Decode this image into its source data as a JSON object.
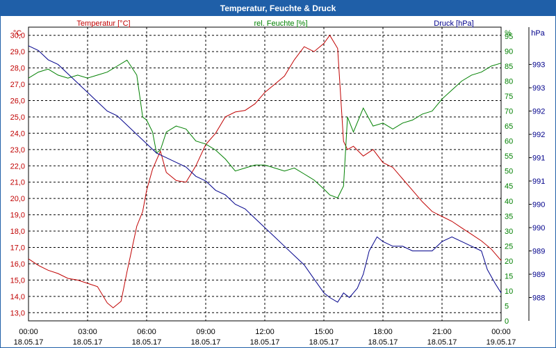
{
  "window_title": "Temperatur, Feuchte & Druck",
  "chart_data": {
    "type": "line",
    "title": "Temperatur, Feuchte & Druck",
    "colors": {
      "temperature": "#c00000",
      "humidity": "#008000",
      "pressure": "#00008b"
    },
    "x_axis": {
      "range_hours": [
        0,
        24
      ],
      "ticks": [
        {
          "time": "00:00",
          "date": "18.05.17"
        },
        {
          "time": "03:00",
          "date": "18.05.17"
        },
        {
          "time": "06:00",
          "date": "18.05.17"
        },
        {
          "time": "09:00",
          "date": "18.05.17"
        },
        {
          "time": "12:00",
          "date": "18.05.17"
        },
        {
          "time": "15:00",
          "date": "18.05.17"
        },
        {
          "time": "18:00",
          "date": "18.05.17"
        },
        {
          "time": "21:00",
          "date": "18.05.17"
        },
        {
          "time": "00:00",
          "date": "19.05.17"
        }
      ]
    },
    "y_axes": {
      "temperature": {
        "label": "Temperatur [°C]",
        "unit": "°C",
        "range": [
          12.5,
          30.5
        ],
        "ticks": [
          "13,0",
          "14,0",
          "15,0",
          "16,0",
          "17,0",
          "18,0",
          "19,0",
          "20,0",
          "21,0",
          "22,0",
          "23,0",
          "24,0",
          "25,0",
          "26,0",
          "27,0",
          "28,0",
          "29,0",
          "30,0"
        ]
      },
      "humidity": {
        "label": "rel. Feuchte [%]",
        "unit": "%",
        "range": [
          0,
          98
        ],
        "ticks": [
          "0",
          "5",
          "10",
          "15",
          "20",
          "25",
          "30",
          "35",
          "40",
          "45",
          "50",
          "55",
          "60",
          "65",
          "70",
          "75",
          "80",
          "85",
          "90",
          "95"
        ]
      },
      "pressure": {
        "label": "Druck [hPa]",
        "unit": "hPa",
        "range": [
          987.5,
          993.8
        ],
        "ticks": [
          "988",
          "989",
          "989",
          "990",
          "990",
          "991",
          "991",
          "992",
          "992",
          "993",
          "993"
        ]
      }
    },
    "series": [
      {
        "name": "Temperatur [°C]",
        "key": "temperature",
        "axis": "temperature",
        "x": [
          0,
          0.5,
          1,
          1.5,
          2,
          2.5,
          3,
          3.5,
          4,
          4.3,
          4.7,
          5,
          5.5,
          5.8,
          6,
          6.3,
          6.7,
          7,
          7.5,
          8,
          8.5,
          9,
          9.5,
          10,
          10.5,
          11,
          11.5,
          12,
          12.5,
          13,
          13.5,
          14,
          14.5,
          15,
          15.3,
          15.7,
          16,
          16.2,
          16.5,
          17,
          17.5,
          18,
          18.5,
          19,
          19.5,
          20,
          20.5,
          21,
          21.5,
          22,
          22.5,
          23,
          23.5,
          24
        ],
        "values": [
          16.3,
          15.9,
          15.6,
          15.4,
          15.1,
          15.0,
          14.8,
          14.6,
          13.6,
          13.3,
          13.7,
          15.5,
          18.3,
          19.2,
          20.5,
          21.8,
          22.9,
          21.6,
          21.1,
          21.0,
          22.0,
          23.3,
          24.0,
          25.0,
          25.3,
          25.4,
          25.8,
          26.5,
          27.0,
          27.5,
          28.5,
          29.3,
          29.0,
          29.5,
          30.0,
          29.2,
          23.5,
          23.0,
          23.2,
          22.6,
          23.0,
          22.2,
          21.9,
          21.2,
          20.5,
          19.8,
          19.2,
          18.9,
          18.6,
          18.2,
          17.8,
          17.4,
          16.9,
          16.2
        ]
      },
      {
        "name": "rel. Feuchte [%]",
        "key": "humidity",
        "axis": "humidity",
        "x": [
          0,
          0.5,
          1,
          1.5,
          2,
          2.5,
          3,
          3.5,
          4,
          4.5,
          5,
          5.5,
          5.8,
          6,
          6.3,
          6.5,
          6.7,
          7,
          7.5,
          8,
          8.5,
          9,
          9.5,
          10,
          10.5,
          11,
          11.5,
          12,
          12.5,
          13,
          13.5,
          14,
          14.5,
          15,
          15.3,
          15.7,
          16,
          16.2,
          16.5,
          17,
          17.5,
          18,
          18.5,
          19,
          19.5,
          20,
          20.5,
          21,
          21.5,
          22,
          22.5,
          23,
          23.5,
          24
        ],
        "values": [
          81,
          83,
          84,
          82,
          81,
          82,
          81,
          82,
          83,
          85,
          87,
          82,
          68,
          67,
          63,
          56,
          57,
          63,
          65,
          64,
          60,
          59,
          57,
          54,
          50,
          51,
          52,
          52,
          51,
          50,
          51,
          49,
          47,
          44,
          42,
          41,
          45,
          68,
          63,
          71,
          65,
          66,
          64,
          66,
          67,
          69,
          70,
          74,
          77,
          80,
          82,
          83,
          85,
          86
        ]
      },
      {
        "name": "Druck [hPa]",
        "key": "pressure",
        "axis": "pressure",
        "x": [
          0,
          0.5,
          1,
          1.5,
          2,
          2.5,
          3,
          3.5,
          4,
          4.5,
          5,
          5.5,
          6,
          6.5,
          7,
          7.5,
          8,
          8.5,
          9,
          9.5,
          10,
          10.5,
          11,
          11.5,
          12,
          12.5,
          13,
          13.5,
          14,
          14.5,
          15,
          15.3,
          15.7,
          16,
          16.3,
          16.7,
          17,
          17.3,
          17.7,
          18,
          18.5,
          19,
          19.5,
          20,
          20.5,
          21,
          21.5,
          22,
          22.5,
          23,
          23.3,
          23.7,
          24
        ],
        "values": [
          993.4,
          993.3,
          993.1,
          993.0,
          992.8,
          992.6,
          992.4,
          992.2,
          992.0,
          991.9,
          991.7,
          991.5,
          991.3,
          991.1,
          991.0,
          990.9,
          990.8,
          990.6,
          990.5,
          990.3,
          990.2,
          990.0,
          989.9,
          989.7,
          989.5,
          989.3,
          989.1,
          988.9,
          988.7,
          988.4,
          988.1,
          988.0,
          987.9,
          988.1,
          988.0,
          988.2,
          988.5,
          989.0,
          989.3,
          989.2,
          989.1,
          989.1,
          989.0,
          989.0,
          989.0,
          989.2,
          989.3,
          989.2,
          989.1,
          989.0,
          988.6,
          988.3,
          988.1
        ]
      }
    ],
    "grid": true
  }
}
